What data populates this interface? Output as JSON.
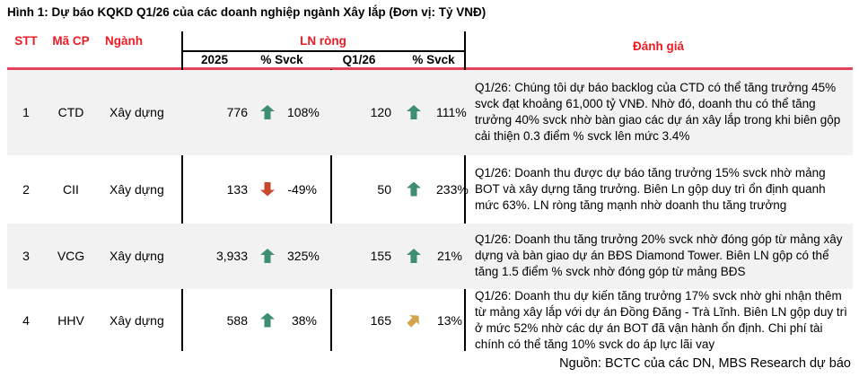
{
  "title": "Hình 1: Dự báo KQKD Q1/26 của các doanh nghiệp ngành Xây lắp (Đơn vị: Tỷ VNĐ)",
  "source": "Nguồn: BCTC của các DN, MBS Research dự báo",
  "colors": {
    "header_text": "#EE1B24",
    "rule": "#E5425B",
    "row_shade": "#F2F2F2",
    "trend": {
      "up": "#3E8E75",
      "down": "#C8492C",
      "up-right": "#D4A54D"
    }
  },
  "header": {
    "stt": "STT",
    "ma_cp": "Mã CP",
    "nganh": "Ngành",
    "ln_rong": "LN ròng",
    "col_2025": "2025",
    "col_2025_svck": "% Svck",
    "col_q126": "Q1/26",
    "col_q126_svck": "% Svck",
    "danh_gia": "Đánh giá"
  },
  "rows": [
    {
      "stt": "1",
      "ticker": "CTD",
      "sector": "Xây dựng",
      "ln_2025": "776",
      "ln_2025_trend": "up",
      "ln_2025_svck": "108%",
      "q126": "120",
      "q126_trend": "up",
      "q126_svck": "111%",
      "danh_gia": "Q1/26: Chúng tôi dự báo backlog của CTD có thể tăng trưởng 45% svck đạt khoảng 61,000 tỷ VNĐ. Nhờ đó, doanh thu có thể tăng trưởng 40% svck nhờ bàn giao các dự án xây lắp trong khi biên gộp cải thiện 0.3 điểm % svck lên mức 3.4%"
    },
    {
      "stt": "2",
      "ticker": "CII",
      "sector": "Xây dựng",
      "ln_2025": "133",
      "ln_2025_trend": "down",
      "ln_2025_svck": "-49%",
      "q126": "50",
      "q126_trend": "up",
      "q126_svck": "233%",
      "danh_gia": "Q1/26: Doanh thu được dự báo tăng trưởng 15% svck nhờ mảng BOT và xây dựng tăng trưởng. Biên Ln gộp duy trì ổn định quanh mức 63%. LN ròng tăng mạnh nhờ doanh thu tăng trưởng"
    },
    {
      "stt": "3",
      "ticker": "VCG",
      "sector": "Xây dựng",
      "ln_2025": "3,933",
      "ln_2025_trend": "up",
      "ln_2025_svck": "325%",
      "q126": "155",
      "q126_trend": "up",
      "q126_svck": "21%",
      "danh_gia": "Q1/26: Doanh thu tăng trưởng 20% svck nhờ đóng góp từ mảng xây dựng và bàn giao dự án BĐS Diamond Tower. Biên LN gộp có thể tăng 1.5 điểm % svck nhờ đóng góp từ mảng BĐS"
    },
    {
      "stt": "4",
      "ticker": "HHV",
      "sector": "Xây dựng",
      "ln_2025": "588",
      "ln_2025_trend": "up",
      "ln_2025_svck": "38%",
      "q126": "165",
      "q126_trend": "up-right",
      "q126_svck": "13%",
      "danh_gia": "Q1/26: Doanh thu dự kiến tăng trưởng 17% svck nhờ ghi nhận thêm từ mảng xây lắp với dự án Đồng Đăng - Trà Lĩnh. Biên LN gộp duy trì ở mức 52% nhờ các dự án BOT đã vận hành ổn định. Chi phí tài chính có thể tăng 10% svck do áp lực lãi vay"
    }
  ]
}
